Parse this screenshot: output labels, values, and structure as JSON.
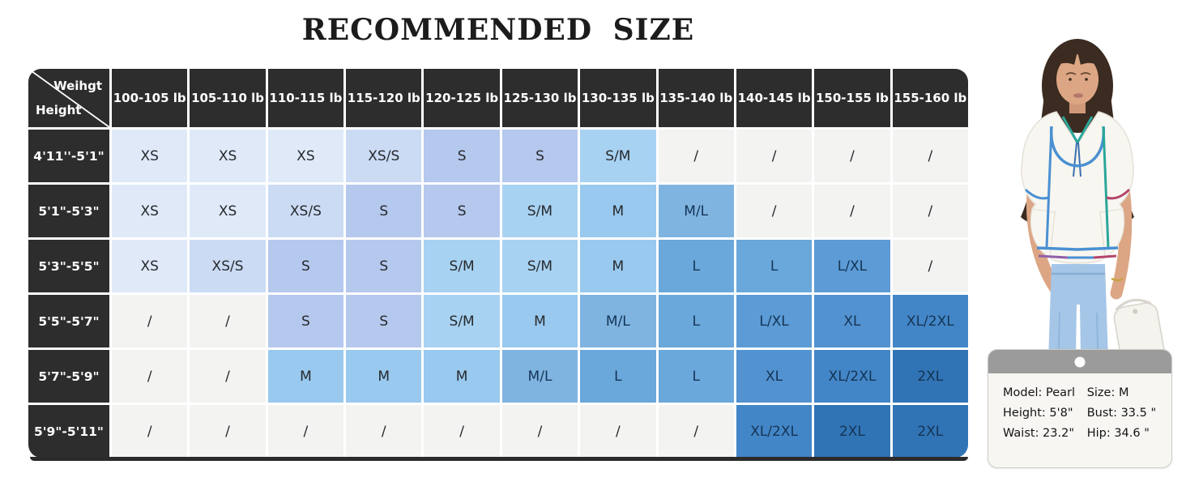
{
  "title": "RECOMMENDED SIZE",
  "size_table": {
    "corner": {
      "weight_label": "Weihgt",
      "height_label": "Height"
    },
    "weight_columns": [
      "100-105 lb",
      "105-110 lb",
      "110-115 lb",
      "115-120 lb",
      "120-125 lb",
      "125-130 lb",
      "130-135 lb",
      "135-140 lb",
      "140-145 lb",
      "150-155 lb",
      "155-160 lb"
    ],
    "rows": [
      {
        "height": "4'11''-5'1\"",
        "sizes": [
          "XS",
          "XS",
          "XS",
          "XS/S",
          "S",
          "S",
          "S/M",
          "/",
          "/",
          "/",
          "/"
        ]
      },
      {
        "height": "5'1\"-5'3\"",
        "sizes": [
          "XS",
          "XS",
          "XS/S",
          "S",
          "S",
          "S/M",
          "M",
          "M/L",
          "/",
          "/",
          "/"
        ]
      },
      {
        "height": "5'3\"-5'5\"",
        "sizes": [
          "XS",
          "XS/S",
          "S",
          "S",
          "S/M",
          "S/M",
          "M",
          "L",
          "L",
          "L/XL",
          "/"
        ]
      },
      {
        "height": "5'5\"-5'7\"",
        "sizes": [
          "/",
          "/",
          "S",
          "S",
          "S/M",
          "M",
          "M/L",
          "L",
          "L/XL",
          "XL",
          "XL/2XL"
        ]
      },
      {
        "height": "5'7\"-5'9\"",
        "sizes": [
          "/",
          "/",
          "M",
          "M",
          "M",
          "M/L",
          "L",
          "L",
          "XL",
          "XL/2XL",
          "2XL"
        ]
      },
      {
        "height": "5'9\"-5'11\"",
        "sizes": [
          "/",
          "/",
          "/",
          "/",
          "/",
          "/",
          "/",
          "/",
          "XL/2XL",
          "2XL",
          "2XL"
        ]
      }
    ],
    "header_bg": "#2d2d2d",
    "size_colors": {
      "XS": "#dfe9f8",
      "XS/S": "#cbdbf4",
      "S": "#b5c8ed",
      "S/M": "#a8d2f1",
      "M": "#99c9ee",
      "M/L": "#7fb4e1",
      "L": "#6aa7db",
      "L/XL": "#5c9bd5",
      "XL": "#5292d0",
      "XL/2XL": "#4386c7",
      "2XL": "#3174b5",
      "/": "#f3f3f1"
    }
  },
  "model_card": {
    "rows": [
      {
        "left": "Model: Pearl",
        "right": "Size: M"
      },
      {
        "left": "Height: 5'8\"",
        "right": "Bust: 33.5 \""
      },
      {
        "left": "Waist: 23.2\"",
        "right": "Hip: 34.6 \""
      }
    ]
  },
  "chart_data": {
    "type": "table",
    "title": "RECOMMENDED SIZE",
    "column_axis_label": "Weihgt",
    "row_axis_label": "Height",
    "columns": [
      "100-105 lb",
      "105-110 lb",
      "110-115 lb",
      "115-120 lb",
      "120-125 lb",
      "125-130 lb",
      "130-135 lb",
      "135-140 lb",
      "140-145 lb",
      "150-155 lb",
      "155-160 lb"
    ],
    "rows": [
      {
        "height": "4'11''-5'1\"",
        "sizes": [
          "XS",
          "XS",
          "XS",
          "XS/S",
          "S",
          "S",
          "S/M",
          "/",
          "/",
          "/",
          "/"
        ]
      },
      {
        "height": "5'1\"-5'3\"",
        "sizes": [
          "XS",
          "XS",
          "XS/S",
          "S",
          "S",
          "S/M",
          "M",
          "M/L",
          "/",
          "/",
          "/"
        ]
      },
      {
        "height": "5'3\"-5'5\"",
        "sizes": [
          "XS",
          "XS/S",
          "S",
          "S",
          "S/M",
          "S/M",
          "M",
          "L",
          "L",
          "L/XL",
          "/"
        ]
      },
      {
        "height": "5'5\"-5'7\"",
        "sizes": [
          "/",
          "/",
          "S",
          "S",
          "S/M",
          "M",
          "M/L",
          "L",
          "L/XL",
          "XL",
          "XL/2XL"
        ]
      },
      {
        "height": "5'7\"-5'9\"",
        "sizes": [
          "/",
          "/",
          "M",
          "M",
          "M",
          "M/L",
          "L",
          "L",
          "XL",
          "XL/2XL",
          "2XL"
        ]
      },
      {
        "height": "5'9\"-5'11\"",
        "sizes": [
          "/",
          "/",
          "/",
          "/",
          "/",
          "/",
          "/",
          "/",
          "XL/2XL",
          "2XL",
          "2XL"
        ]
      }
    ],
    "legend": "cell shading darkens from XS (lightest blue) to 2XL (darkest blue); '/' = not available (gray)"
  }
}
